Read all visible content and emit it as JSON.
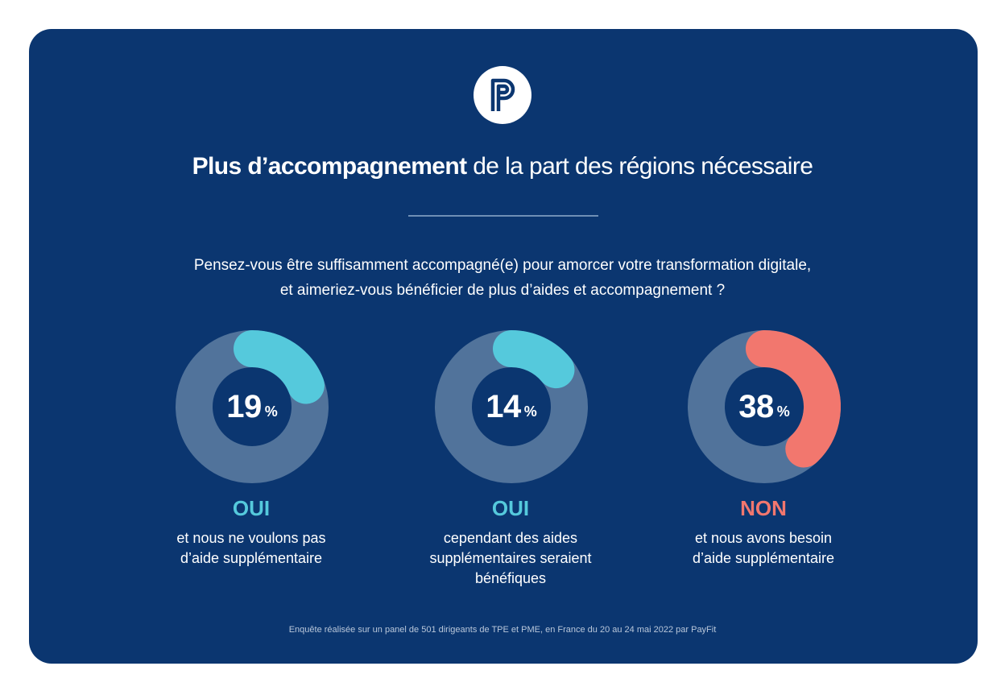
{
  "header": {
    "logo_letter": "P",
    "title_bold": "Plus d’accompagnement",
    "title_rest": " de la part des régions nécessaire"
  },
  "question": {
    "line1": "Pensez-vous être suffisamment accompagné(e) pour amorcer votre transformation digitale,",
    "line2": "et aimeriez-vous bénéficier de plus d’aides et accompagnement ?"
  },
  "colors": {
    "background": "#0b3670",
    "track": "#51739b",
    "oui": "#55c9dc",
    "non": "#f2776e"
  },
  "chart_data": {
    "type": "pie",
    "title": "Plus d’accompagnement de la part des régions nécessaire",
    "series": [
      {
        "value": 19,
        "label": "19",
        "unit": "%",
        "answer": "OUI",
        "color": "#55c9dc",
        "description": [
          "et nous ne voulons pas",
          "d’aide supplémentaire"
        ]
      },
      {
        "value": 14,
        "label": "14",
        "unit": "%",
        "answer": "OUI",
        "color": "#55c9dc",
        "description": [
          "cependant des aides",
          "supplémentaires seraient",
          "bénéfiques"
        ]
      },
      {
        "value": 38,
        "label": "38",
        "unit": "%",
        "answer": "NON",
        "color": "#f2776e",
        "description": [
          "et nous avons besoin",
          "d’aide supplémentaire"
        ]
      }
    ]
  },
  "footer": "Enquête réalisée sur un panel de 501 dirigeants de TPE et PME, en France du 20 au 24 mai 2022 par PayFit"
}
